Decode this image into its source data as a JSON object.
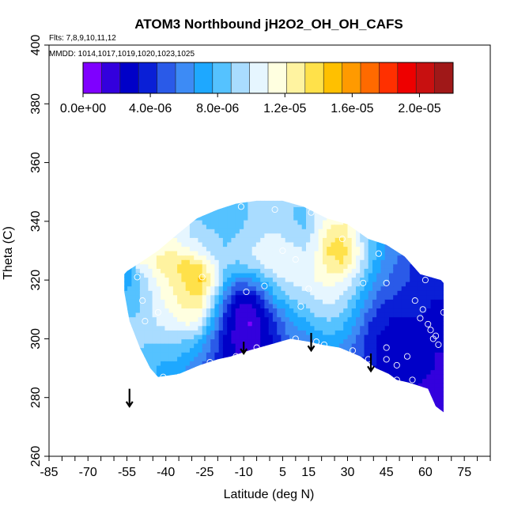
{
  "chart_data": {
    "type": "heatmap",
    "title": "ATOM3 Northbound jH2O2_OH_OH_CAFS",
    "subtitle_flights": "Flts: 7,8,9,10,11,12",
    "subtitle_dates": "MMDD: 1014,1017,1019,1020,1023,1025",
    "xlabel": "Latitude (deg N)",
    "ylabel": "Theta (C)",
    "xlim": [
      -85,
      85
    ],
    "ylim": [
      260,
      400
    ],
    "x_ticks": [
      "-85",
      "-70",
      "-55",
      "-40",
      "-25",
      "-10",
      "5",
      "15",
      "30",
      "45",
      "60",
      "75"
    ],
    "x_tick_values": [
      -85,
      -70,
      -55,
      -40,
      -25,
      -10,
      5,
      15,
      30,
      45,
      60,
      75
    ],
    "y_ticks": [
      "260",
      "280",
      "300",
      "320",
      "340",
      "360",
      "380",
      "400"
    ],
    "y_tick_values": [
      260,
      280,
      300,
      320,
      340,
      360,
      380,
      400
    ],
    "colorbar": {
      "min": 0,
      "max": 2.2e-05,
      "labels": [
        "0.0e+00",
        "4.0e-06",
        "8.0e-06",
        "1.2e-05",
        "1.6e-05",
        "2.0e-05"
      ],
      "label_values": [
        0,
        4e-06,
        8e-06,
        1.2e-05,
        1.6e-05,
        2e-05
      ],
      "colors": [
        "#7f00ff",
        "#3300dd",
        "#0000c8",
        "#0a1fd6",
        "#2a5ae8",
        "#3d8bf5",
        "#1ea8ff",
        "#55c2ff",
        "#a9dcff",
        "#e6f6ff",
        "#ffffe0",
        "#fff3a0",
        "#ffe14a",
        "#ffc000",
        "#ff9a00",
        "#ff6a00",
        "#ff3000",
        "#ee0000",
        "#c81010",
        "#a01818"
      ]
    },
    "field_polygon": [
      [
        -56,
        322
      ],
      [
        -55,
        323
      ],
      [
        -48,
        327
      ],
      [
        -43,
        330
      ],
      [
        -35,
        336
      ],
      [
        -28,
        341
      ],
      [
        -20,
        344
      ],
      [
        -13,
        346
      ],
      [
        -5,
        347
      ],
      [
        5,
        347
      ],
      [
        13,
        345
      ],
      [
        22,
        341
      ],
      [
        30,
        339
      ],
      [
        38,
        334
      ],
      [
        45,
        332
      ],
      [
        52,
        328
      ],
      [
        58,
        322
      ],
      [
        66,
        320
      ],
      [
        67,
        319
      ],
      [
        67,
        275
      ],
      [
        64,
        277
      ],
      [
        61,
        283
      ],
      [
        54,
        285
      ],
      [
        49,
        286
      ],
      [
        46,
        288
      ],
      [
        41,
        290
      ],
      [
        35,
        294
      ],
      [
        27,
        297
      ],
      [
        20,
        298
      ],
      [
        15,
        299
      ],
      [
        8,
        300
      ],
      [
        0,
        298
      ],
      [
        -8,
        296
      ],
      [
        -15,
        294
      ],
      [
        -20,
        293
      ],
      [
        -27,
        291
      ],
      [
        -35,
        288
      ],
      [
        -43,
        287
      ],
      [
        -46,
        290
      ],
      [
        -50,
        297
      ],
      [
        -54,
        306
      ],
      [
        -56,
        316
      ]
    ],
    "field_grid": {
      "x": [
        -57,
        -52,
        -47,
        -42,
        -37,
        -32,
        -27,
        -22,
        -17,
        -12,
        -7,
        -2,
        3,
        8,
        13,
        18,
        23,
        28,
        33,
        38,
        43,
        48,
        53,
        58,
        63,
        68
      ],
      "y": [
        275,
        280,
        285,
        290,
        295,
        300,
        305,
        310,
        315,
        320,
        325,
        330,
        335,
        340,
        345
      ],
      "values": [
        [
          0.0,
          0.0,
          0.0,
          0.0,
          0.0,
          0.0,
          0.0,
          0.0,
          0.0,
          0.0,
          0.0,
          0.0,
          0.0,
          0.0,
          0.0,
          0.0,
          0.0,
          0.0,
          0.0,
          0.0,
          0.0,
          0.0,
          2e-06,
          1.8e-06,
          1.5e-06,
          1.5e-06
        ],
        [
          0.0,
          0.0,
          0.0,
          0.0,
          0.0,
          0.0,
          0.0,
          0.0,
          0.0,
          0.0,
          0.0,
          0.0,
          0.0,
          0.0,
          0.0,
          0.0,
          0.0,
          0.0,
          0.0,
          0.0,
          0.0,
          2.5e-06,
          2.2e-06,
          2e-06,
          1.8e-06,
          1.8e-06
        ],
        [
          0.0,
          0.0,
          0.0,
          7.5e-06,
          7.5e-06,
          6.5e-06,
          5.5e-06,
          5e-06,
          0.0,
          0.0,
          0.0,
          0.0,
          0.0,
          0.0,
          0.0,
          0.0,
          0.0,
          0.0,
          0.0,
          0.0,
          2.5e-06,
          3e-06,
          2.5e-06,
          2.2e-06,
          2e-06,
          2e-06
        ],
        [
          0.0,
          0.0,
          8e-06,
          7.5e-06,
          7.5e-06,
          6.5e-06,
          5.5e-06,
          4.5e-06,
          3.5e-06,
          0.0,
          0.0,
          0.0,
          0.0,
          0.0,
          0.0,
          0.0,
          0.0,
          0.0,
          0.0,
          3.5e-06,
          3e-06,
          3e-06,
          3e-06,
          2.5e-06,
          2.2e-06,
          2e-06
        ],
        [
          0.0,
          0.0,
          8.5e-06,
          8e-06,
          8e-06,
          7.5e-06,
          6.5e-06,
          5e-06,
          3e-06,
          2e-06,
          2e-06,
          2.5e-06,
          3.5e-06,
          4e-06,
          4.5e-06,
          5.5e-06,
          6e-06,
          6e-06,
          5e-06,
          4e-06,
          3e-06,
          3e-06,
          2.8e-06,
          2.5e-06,
          2.2e-06,
          2.2e-06
        ],
        [
          0.0,
          9e-06,
          9e-06,
          9e-06,
          9e-06,
          9e-06,
          8e-06,
          5.5e-06,
          3e-06,
          1.5e-06,
          1.5e-06,
          2.5e-06,
          4e-06,
          5.5e-06,
          6e-06,
          7e-06,
          7.5e-06,
          7e-06,
          5.5e-06,
          4e-06,
          3e-06,
          2.5e-06,
          2.5e-06,
          2.5e-06,
          2.2e-06,
          2.5e-06
        ],
        [
          0.0,
          9e-06,
          9.5e-06,
          1e-05,
          1.05e-05,
          1.1e-05,
          1.05e-05,
          7e-06,
          3.5e-06,
          1.5e-06,
          1e-06,
          2.5e-06,
          4.5e-06,
          6.5e-06,
          7e-06,
          8e-06,
          8.5e-06,
          8e-06,
          6.5e-06,
          4.5e-06,
          3.5e-06,
          3e-06,
          3e-06,
          3e-06,
          2.8e-06,
          3e-06
        ],
        [
          0.0,
          8.5e-06,
          9.5e-06,
          1.05e-05,
          1.15e-05,
          1.2e-05,
          1.2e-05,
          8.5e-06,
          4.5e-06,
          2e-06,
          1.5e-06,
          3.5e-06,
          6e-06,
          7.5e-06,
          8.5e-06,
          9.5e-06,
          9.5e-06,
          9e-06,
          7.5e-06,
          5.5e-06,
          4e-06,
          3.5e-06,
          3.5e-06,
          3.5e-06,
          3e-06,
          3e-06
        ],
        [
          0.0,
          8e-06,
          9.5e-06,
          1.1e-05,
          1.2e-05,
          1.3e-05,
          1.35e-05,
          1e-05,
          6e-06,
          3e-06,
          3e-06,
          5.5e-06,
          8e-06,
          9e-06,
          9.5e-06,
          1e-05,
          1.05e-05,
          1e-05,
          8.5e-06,
          6.5e-06,
          5e-06,
          4.5e-06,
          4e-06,
          4e-06,
          3.5e-06,
          3.5e-06
        ],
        [
          7e-06,
          8e-06,
          1e-05,
          1.15e-05,
          1.25e-05,
          1.35e-05,
          1.45e-05,
          1.15e-05,
          8e-06,
          6e-06,
          6.5e-06,
          8e-06,
          9.5e-06,
          1e-05,
          1.05e-05,
          1.1e-05,
          1.15e-05,
          1.1e-05,
          9.5e-06,
          7.5e-06,
          6e-06,
          5e-06,
          4.5e-06,
          4e-06,
          3.5e-06,
          3.5e-06
        ],
        [
          0.0,
          0.0,
          1.1e-05,
          1.25e-05,
          1.3e-05,
          1.4e-05,
          1.35e-05,
          1.1e-05,
          9e-06,
          8.5e-06,
          9e-06,
          1e-05,
          1.05e-05,
          1.1e-05,
          1.05e-05,
          1.1e-05,
          1.25e-05,
          1.3e-05,
          1.1e-05,
          8.5e-06,
          6.5e-06,
          5.5e-06,
          4.5e-06,
          4e-06,
          0.0,
          0.0
        ],
        [
          0.0,
          0.0,
          0.0,
          1.2e-05,
          1.2e-05,
          1.15e-05,
          1.05e-05,
          9.5e-06,
          9e-06,
          9.5e-06,
          1e-05,
          1.05e-05,
          1.05e-05,
          1.05e-05,
          1e-05,
          1.1e-05,
          1.35e-05,
          1.4e-05,
          1.2e-05,
          9e-06,
          7e-06,
          6e-06,
          5e-06,
          0.0,
          0.0,
          0.0
        ],
        [
          0.0,
          0.0,
          0.0,
          0.0,
          0.0,
          1e-05,
          9.5e-06,
          9e-06,
          8.5e-06,
          9e-06,
          9.5e-06,
          1e-05,
          1e-05,
          9.5e-06,
          9e-06,
          1.05e-05,
          1.3e-05,
          1.3e-05,
          1.1e-05,
          8.5e-06,
          0.0,
          0.0,
          0.0,
          0.0,
          0.0,
          0.0
        ],
        [
          0.0,
          0.0,
          0.0,
          0.0,
          0.0,
          0.0,
          0.0,
          8.5e-06,
          8e-06,
          8.5e-06,
          9e-06,
          9.5e-06,
          9.5e-06,
          9e-06,
          8.5e-06,
          1e-05,
          1.15e-05,
          0.0,
          0.0,
          0.0,
          0.0,
          0.0,
          0.0,
          0.0,
          0.0,
          0.0
        ],
        [
          0.0,
          0.0,
          0.0,
          0.0,
          0.0,
          0.0,
          0.0,
          0.0,
          0.0,
          8.5e-06,
          9e-06,
          9e-06,
          9e-06,
          0.0,
          0.0,
          0.0,
          0.0,
          0.0,
          0.0,
          0.0,
          0.0,
          0.0,
          0.0,
          0.0,
          0.0,
          0.0
        ]
      ]
    },
    "observation_points": [
      [
        -51,
        321
      ],
      [
        -49,
        313
      ],
      [
        -48,
        306
      ],
      [
        -43,
        309
      ],
      [
        -41,
        287
      ],
      [
        -35,
        287
      ],
      [
        -26,
        321
      ],
      [
        -23,
        292
      ],
      [
        -13,
        294
      ],
      [
        -9,
        316
      ],
      [
        -5,
        297
      ],
      [
        -2,
        318
      ],
      [
        5,
        330
      ],
      [
        10,
        300
      ],
      [
        10,
        327
      ],
      [
        12,
        311
      ],
      [
        15,
        317
      ],
      [
        18,
        299
      ],
      [
        21,
        298
      ],
      [
        28,
        334
      ],
      [
        32,
        296
      ],
      [
        36,
        319
      ],
      [
        38,
        293
      ],
      [
        42,
        329
      ],
      [
        45,
        293
      ],
      [
        45,
        297
      ],
      [
        45,
        319
      ],
      [
        49,
        291
      ],
      [
        49,
        286
      ],
      [
        53,
        294
      ],
      [
        55,
        286
      ],
      [
        56,
        313
      ],
      [
        58,
        307
      ],
      [
        59,
        310
      ],
      [
        60,
        320
      ],
      [
        61,
        305
      ],
      [
        62,
        303
      ],
      [
        63,
        300
      ],
      [
        64,
        301
      ],
      [
        65,
        298
      ],
      [
        67,
        309
      ],
      [
        -11,
        345
      ],
      [
        2,
        344
      ],
      [
        16,
        343
      ]
    ],
    "arrows": [
      [
        -54,
        283,
        277
      ],
      [
        -10,
        299,
        295
      ],
      [
        16,
        302,
        296
      ],
      [
        39,
        295,
        289
      ]
    ]
  }
}
